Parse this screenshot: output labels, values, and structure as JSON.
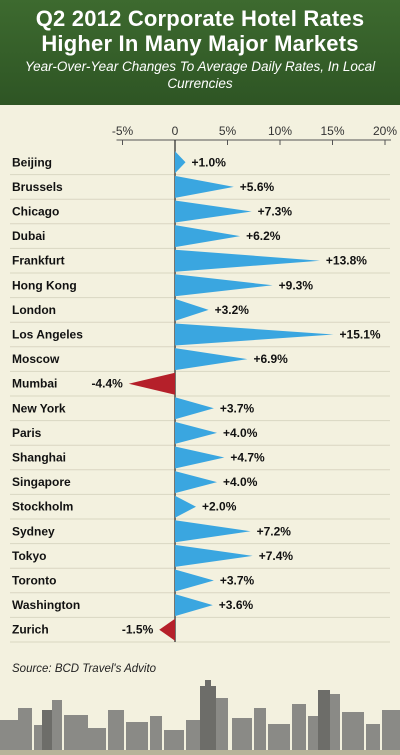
{
  "header": {
    "title": "Q2 2012 Corporate Hotel Rates Higher In Many Major Markets",
    "subtitle": "Year-Over-Year Changes To Average Daily Rates, In Local Currencies"
  },
  "source": "Source: BCD Travel's Advito",
  "colors": {
    "positive": "#3aa6e0",
    "negative": "#b5202a",
    "header": "#3a652c",
    "background": "#f3f1df"
  },
  "chart_data": {
    "type": "bar",
    "orientation": "horizontal",
    "title": "Q2 2012 Corporate Hotel Rates Higher In Many Major Markets",
    "subtitle": "Year-Over-Year Changes To Average Daily Rates, In Local Currencies",
    "xlim": [
      -5,
      20
    ],
    "ticks": [
      -5,
      0,
      5,
      10,
      15,
      20
    ],
    "tick_labels": [
      "-5%",
      "0",
      "5%",
      "10%",
      "15%",
      "20%"
    ],
    "categories": [
      "Beijing",
      "Brussels",
      "Chicago",
      "Dubai",
      "Frankfurt",
      "Hong Kong",
      "London",
      "Los Angeles",
      "Moscow",
      "Mumbai",
      "New York",
      "Paris",
      "Shanghai",
      "Singapore",
      "Stockholm",
      "Sydney",
      "Tokyo",
      "Toronto",
      "Washington",
      "Zurich"
    ],
    "values": [
      1.0,
      5.6,
      7.3,
      6.2,
      13.8,
      9.3,
      3.2,
      15.1,
      6.9,
      -4.4,
      3.7,
      4.0,
      4.7,
      4.0,
      2.0,
      7.2,
      7.4,
      3.7,
      3.6,
      -1.5
    ],
    "labels": [
      "+1.0%",
      "+5.6%",
      "+7.3%",
      "+6.2%",
      "+13.8%",
      "+9.3%",
      "+3.2%",
      "+15.1%",
      "+6.9%",
      "-4.4%",
      "+3.7%",
      "+4.0%",
      "+4.7%",
      "+4.0%",
      "+2.0%",
      "+7.2%",
      "+7.4%",
      "+3.7%",
      "+3.6%",
      "-1.5%"
    ]
  }
}
